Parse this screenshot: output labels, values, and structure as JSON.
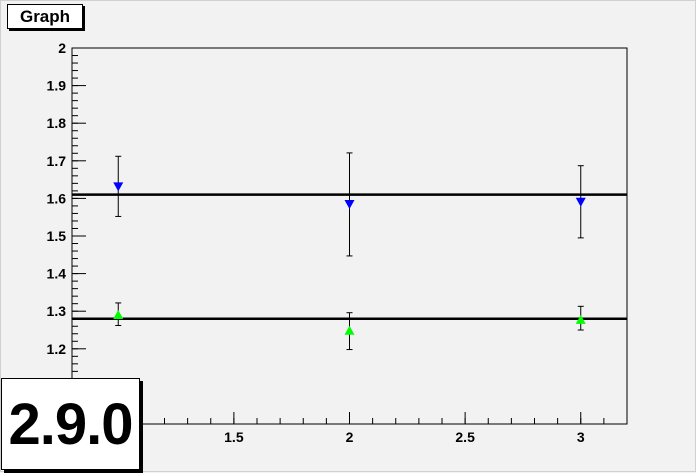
{
  "chart_data": {
    "type": "scatter",
    "title": "Graph",
    "xlabel": "",
    "ylabel": "",
    "xlim": [
      0.8,
      3.2
    ],
    "ylim": [
      1.0,
      2.0
    ],
    "xticks": [
      {
        "value": 1.5,
        "label": "1.5"
      },
      {
        "value": 2,
        "label": "2"
      },
      {
        "value": 2.5,
        "label": "2.5"
      },
      {
        "value": 3,
        "label": "3"
      }
    ],
    "yticks": [
      {
        "value": 1.2,
        "label": "1.2"
      },
      {
        "value": 1.3,
        "label": "1.3"
      },
      {
        "value": 1.4,
        "label": "1.4"
      },
      {
        "value": 1.5,
        "label": "1.5"
      },
      {
        "value": 1.6,
        "label": "1.6"
      },
      {
        "value": 1.7,
        "label": "1.7"
      },
      {
        "value": 1.8,
        "label": "1.8"
      },
      {
        "value": 1.9,
        "label": "1.9"
      },
      {
        "value": 2,
        "label": "2"
      }
    ],
    "series": [
      {
        "marker": "triangle-down",
        "color": "#0000ff",
        "points": [
          {
            "x": 1,
            "y": 1.632,
            "yerr_low": 1.552,
            "yerr_high": 1.712
          },
          {
            "x": 2,
            "y": 1.585,
            "yerr_low": 1.447,
            "yerr_high": 1.721
          },
          {
            "x": 3,
            "y": 1.591,
            "yerr_low": 1.495,
            "yerr_high": 1.687
          }
        ],
        "fit": 1.61
      },
      {
        "marker": "triangle-up",
        "color": "#00ff00",
        "points": [
          {
            "x": 1,
            "y": 1.29,
            "yerr_low": 1.262,
            "yerr_high": 1.322
          },
          {
            "x": 2,
            "y": 1.248,
            "yerr_low": 1.198,
            "yerr_high": 1.296
          },
          {
            "x": 3,
            "y": 1.277,
            "yerr_low": 1.25,
            "yerr_high": 1.313
          }
        ],
        "fit": 1.28
      }
    ],
    "grid": false,
    "legend": "none"
  },
  "version_label": "2.9.0"
}
